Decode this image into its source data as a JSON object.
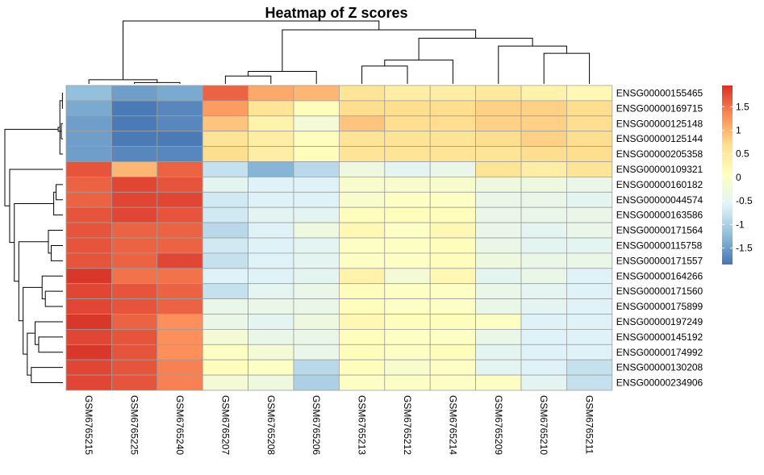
{
  "chart_data": {
    "type": "heatmap",
    "title": "Heatmap of Z scores",
    "columns": [
      "GSM6765215",
      "GSM6765225",
      "GSM6765240",
      "GSM6765207",
      "GSM6765208",
      "GSM6765206",
      "GSM6765213",
      "GSM6765212",
      "GSM6765214",
      "GSM6765209",
      "GSM6765210",
      "GSM6765211"
    ],
    "rows": [
      "ENSG00000155465",
      "ENSG00000169715",
      "ENSG00000125148",
      "ENSG00000125144",
      "ENSG00000205358",
      "ENSG00000109321",
      "ENSG00000160182",
      "ENSG00000044574",
      "ENSG00000163586",
      "ENSG00000171564",
      "ENSG00000115758",
      "ENSG00000171557",
      "ENSG00000164266",
      "ENSG00000171560",
      "ENSG00000175899",
      "ENSG00000197249",
      "ENSG00000145192",
      "ENSG00000174992",
      "ENSG00000130208",
      "ENSG00000234906"
    ],
    "values": [
      [
        -1.2,
        -1.5,
        -1.4,
        1.6,
        1.1,
        1.0,
        0.6,
        0.4,
        0.4,
        0.5,
        0.3,
        0.2
      ],
      [
        -1.4,
        -1.8,
        -1.7,
        1.2,
        0.6,
        0.1,
        0.7,
        0.7,
        0.7,
        0.8,
        0.8,
        0.7
      ],
      [
        -1.5,
        -1.8,
        -1.7,
        0.9,
        0.3,
        -0.2,
        0.9,
        0.7,
        0.7,
        0.8,
        0.8,
        0.7
      ],
      [
        -1.5,
        -1.8,
        -1.8,
        0.6,
        0.4,
        0.1,
        0.6,
        0.6,
        0.6,
        0.7,
        0.8,
        0.7
      ],
      [
        -1.5,
        -1.7,
        -1.7,
        0.7,
        0.4,
        0.1,
        0.6,
        0.6,
        0.6,
        0.6,
        0.7,
        0.7
      ],
      [
        1.7,
        1.0,
        1.6,
        -0.8,
        -1.3,
        -0.9,
        -0.3,
        -0.5,
        -0.4,
        0.6,
        0.4,
        0.6
      ],
      [
        1.6,
        1.8,
        1.7,
        -0.5,
        -0.6,
        -0.6,
        -0.1,
        -0.1,
        -0.1,
        -0.3,
        -0.3,
        -0.4
      ],
      [
        1.6,
        1.8,
        1.8,
        -0.7,
        -0.6,
        -0.6,
        -0.1,
        0.0,
        0.0,
        -0.4,
        -0.4,
        -0.5
      ],
      [
        1.7,
        1.8,
        1.7,
        -0.7,
        -0.5,
        -0.5,
        0.1,
        0.1,
        0.1,
        -0.4,
        -0.4,
        -0.4
      ],
      [
        1.7,
        1.6,
        1.6,
        -0.9,
        -0.6,
        -0.3,
        0.2,
        0.0,
        0.2,
        -0.4,
        -0.5,
        -0.4
      ],
      [
        1.7,
        1.6,
        1.6,
        -0.7,
        -0.6,
        -0.5,
        0.0,
        0.0,
        0.1,
        -0.4,
        -0.5,
        -0.5
      ],
      [
        1.7,
        1.6,
        1.8,
        -0.8,
        -0.6,
        -0.5,
        0.0,
        0.0,
        0.1,
        -0.3,
        -0.4,
        -0.4
      ],
      [
        1.9,
        1.5,
        1.5,
        -0.6,
        -0.6,
        -0.5,
        0.3,
        -0.2,
        0.2,
        -0.5,
        -0.4,
        -0.6
      ],
      [
        1.8,
        1.7,
        1.6,
        -0.8,
        -0.5,
        -0.4,
        0.1,
        0.0,
        0.0,
        -0.4,
        -0.5,
        -0.6
      ],
      [
        1.8,
        1.7,
        1.6,
        -0.4,
        -0.4,
        -0.4,
        0.1,
        0.0,
        0.0,
        -0.4,
        -0.5,
        -0.6
      ],
      [
        1.9,
        1.6,
        1.3,
        -0.4,
        -0.5,
        -0.3,
        0.2,
        0.1,
        0.1,
        0.0,
        -0.6,
        -0.6
      ],
      [
        1.8,
        1.7,
        1.3,
        -0.2,
        -0.4,
        -0.4,
        0.1,
        0.0,
        0.0,
        -0.4,
        -0.6,
        -0.6
      ],
      [
        1.9,
        1.7,
        1.3,
        0.0,
        -0.2,
        -0.4,
        0.1,
        0.0,
        0.1,
        -0.5,
        -0.6,
        -0.6
      ],
      [
        1.8,
        1.7,
        1.4,
        0.1,
        0.0,
        -0.9,
        0.1,
        -0.1,
        0.0,
        -0.5,
        -0.6,
        -0.8
      ],
      [
        1.8,
        1.7,
        1.4,
        -0.2,
        -0.3,
        -1.0,
        0.0,
        0.0,
        0.0,
        0.0,
        -0.5,
        -0.8
      ]
    ],
    "legend": {
      "ticks": [
        "-1.5",
        "-1",
        "-0.5",
        "0",
        "0.5",
        "1",
        "1.5"
      ],
      "tick_values": [
        -1.5,
        -1,
        -0.5,
        0,
        0.5,
        1,
        1.5
      ],
      "range": [
        -1.85,
        1.95
      ],
      "colors": [
        "#4575b4",
        "#91bfdb",
        "#e0f3f8",
        "#ffffbf",
        "#fee090",
        "#fc8d59",
        "#d73027"
      ]
    },
    "row_dendrogram": [
      {
        "a": 0,
        "b": 1
      },
      {
        "a": 2,
        "b": 3
      },
      {
        "a": 20,
        "b": 4
      },
      {
        "a": 21,
        "b": 22
      },
      {
        "a": 6,
        "b": 7
      },
      {
        "a": 24,
        "b": 8
      },
      {
        "a": 10,
        "b": 11
      },
      {
        "a": 9,
        "b": 26
      },
      {
        "a": 13,
        "b": 14
      },
      {
        "a": 12,
        "b": 28
      },
      {
        "a": 16,
        "b": 17
      },
      {
        "a": 15,
        "b": 30
      },
      {
        "a": 18,
        "b": 19
      },
      {
        "a": 31,
        "b": 32
      },
      {
        "a": 29,
        "b": 33
      },
      {
        "a": 27,
        "b": 34
      },
      {
        "a": 25,
        "b": 35
      },
      {
        "a": 5,
        "b": 36
      },
      {
        "a": 23,
        "b": 37
      }
    ],
    "col_dendrogram": [
      {
        "a": 1,
        "b": 2
      },
      {
        "a": 0,
        "b": 12
      },
      {
        "a": 3,
        "b": 4
      },
      {
        "a": 14,
        "b": 5
      },
      {
        "a": 6,
        "b": 7
      },
      {
        "a": 16,
        "b": 8
      },
      {
        "a": 10,
        "b": 11
      },
      {
        "a": 9,
        "b": 18
      },
      {
        "a": 17,
        "b": 19
      },
      {
        "a": 15,
        "b": 20
      },
      {
        "a": 13,
        "b": 21
      }
    ]
  }
}
